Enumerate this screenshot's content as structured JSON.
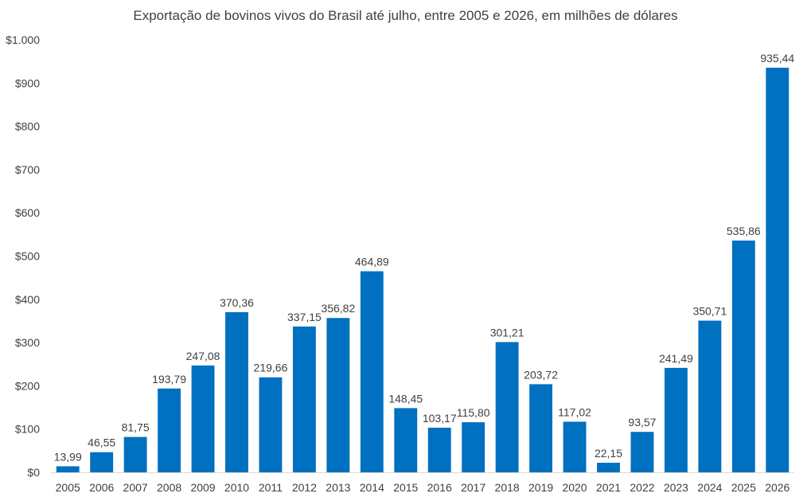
{
  "chart_data": {
    "type": "bar",
    "title": "Exportação de bovinos vivos do Brasil até julho, entre 2005 e 2026, em milhões de dólares",
    "xlabel": "",
    "ylabel": "",
    "ylim": [
      0,
      1000
    ],
    "y_ticks": [
      0,
      100,
      200,
      300,
      400,
      500,
      600,
      700,
      800,
      900,
      1000
    ],
    "y_tick_labels": [
      "$0",
      "$100",
      "$200",
      "$300",
      "$400",
      "$500",
      "$600",
      "$700",
      "$800",
      "$900",
      "$1.000"
    ],
    "categories": [
      "2005",
      "2006",
      "2007",
      "2008",
      "2009",
      "2010",
      "2011",
      "2012",
      "2013",
      "2014",
      "2015",
      "2016",
      "2017",
      "2018",
      "2019",
      "2020",
      "2021",
      "2022",
      "2023",
      "2024",
      "2025",
      "2026"
    ],
    "values": [
      13.99,
      46.55,
      81.75,
      193.79,
      247.08,
      370.36,
      219.66,
      337.15,
      356.82,
      464.89,
      148.45,
      103.17,
      115.8,
      301.21,
      203.72,
      117.02,
      22.15,
      93.57,
      241.49,
      350.71,
      535.86,
      935.44
    ],
    "value_labels": [
      "13,99",
      "46,55",
      "81,75",
      "193,79",
      "247,08",
      "370,36",
      "219,66",
      "337,15",
      "356,82",
      "464,89",
      "148,45",
      "103,17",
      "115,80",
      "301,21",
      "203,72",
      "117,02",
      "22,15",
      "93,57",
      "241,49",
      "350,71",
      "535,86",
      "935,44"
    ],
    "bar_color": "#0070c0",
    "grid": false
  }
}
